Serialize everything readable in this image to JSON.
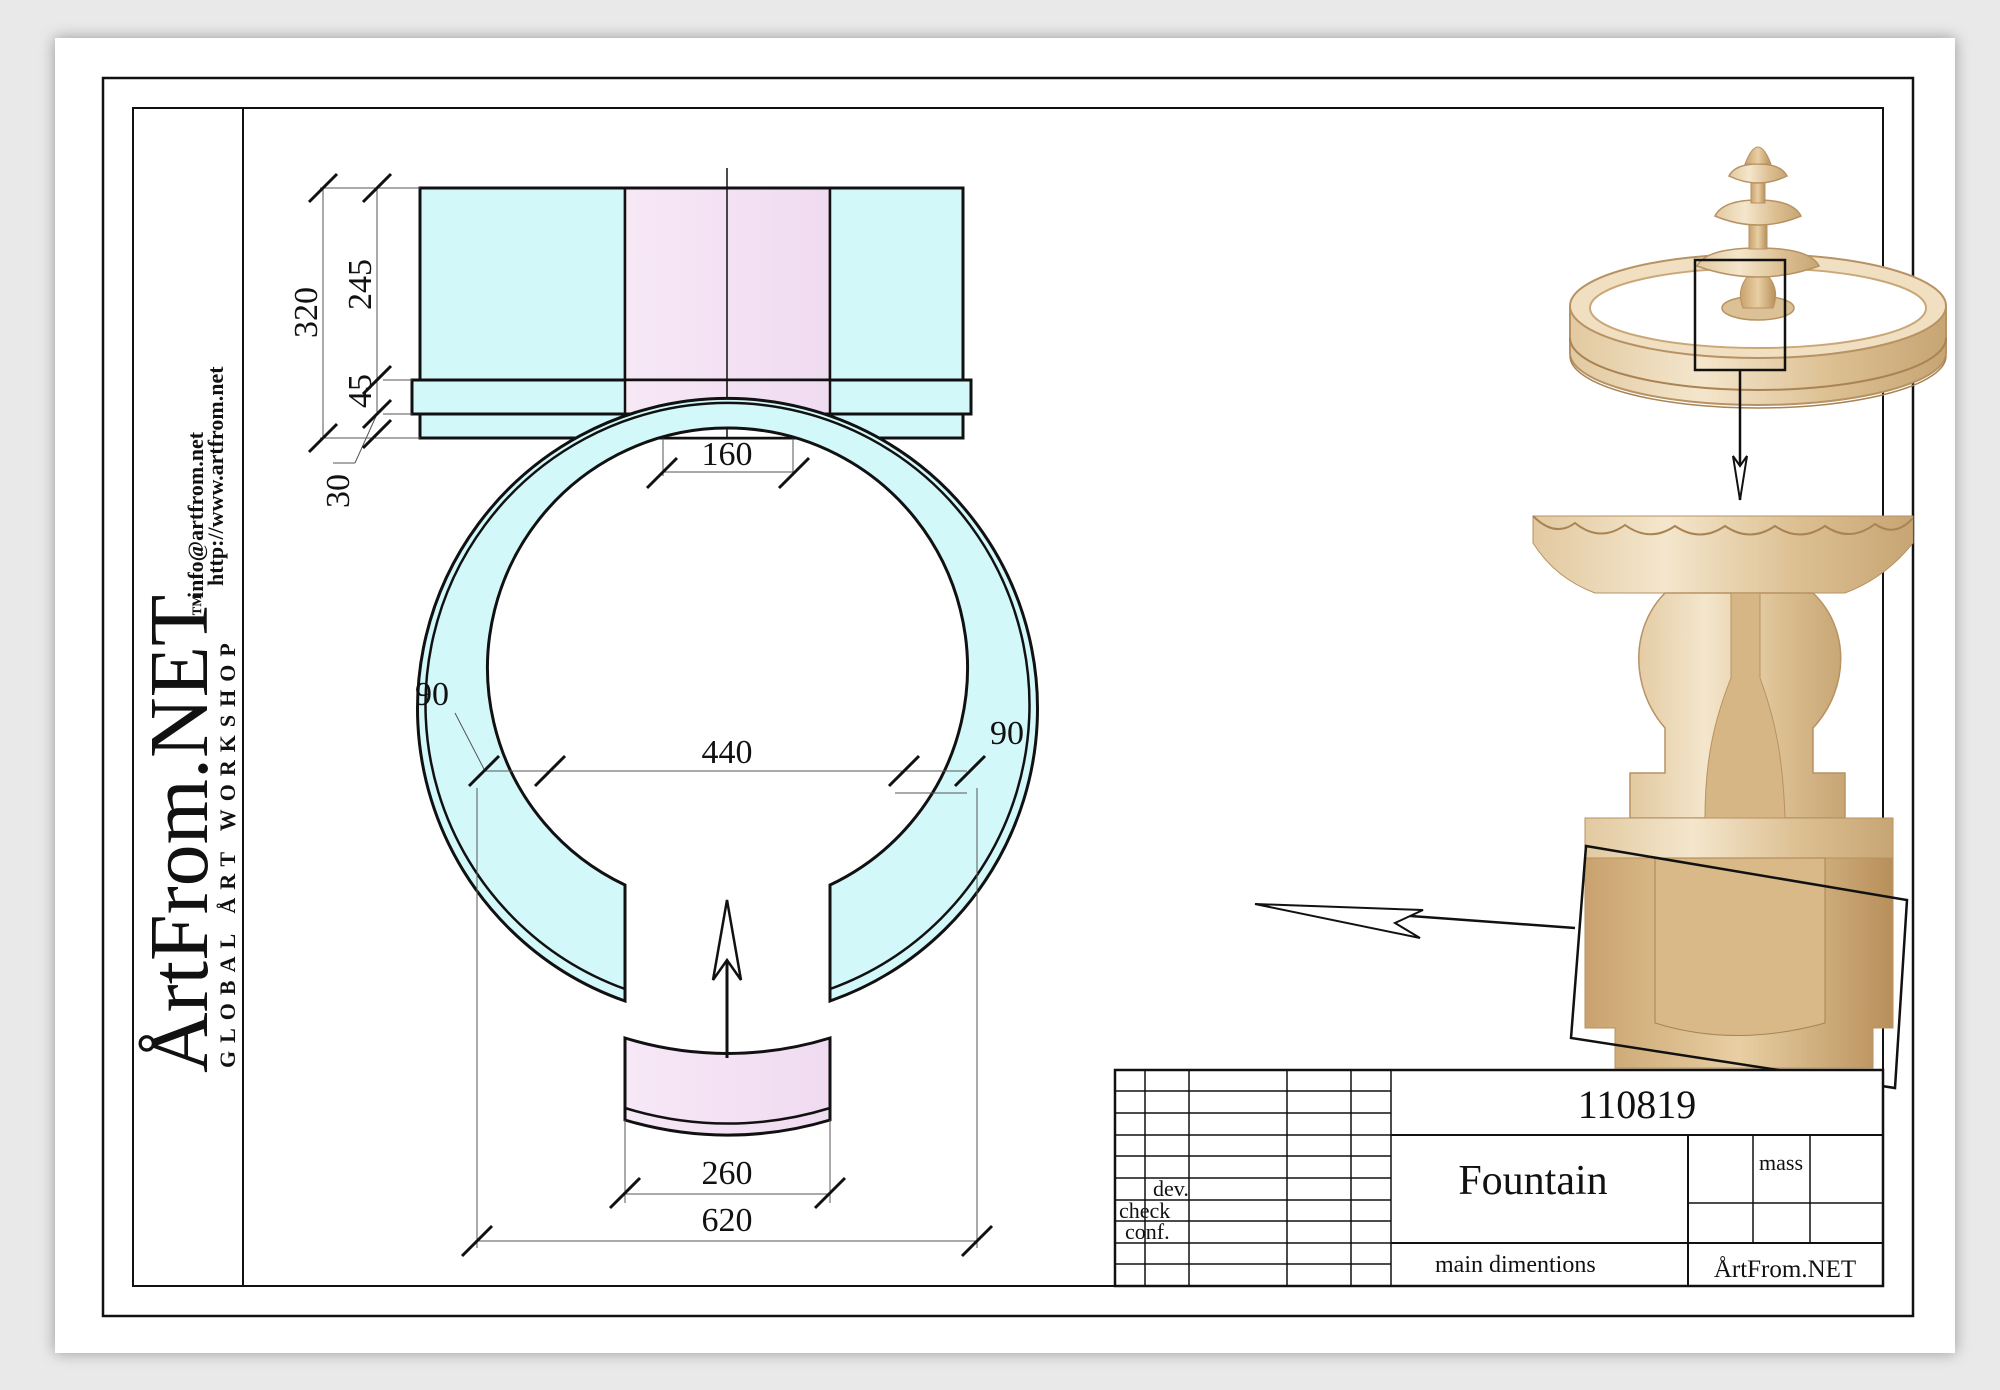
{
  "brand": {
    "name": "ÅrtFrom.NET",
    "trademark": "™",
    "tagline": "GLOBAL ÅRT WORKSHOP",
    "email": "info@artfrom.net",
    "website": "http://www.artfrom.net"
  },
  "dimensions": {
    "total_height": "320",
    "upper_height": "245",
    "rim_height": "45",
    "base_height": "30",
    "inlet_width": "160",
    "wall_left": "90",
    "wall_right": "90",
    "inner_diameter": "440",
    "inlet_arc_width": "260",
    "outer_diameter": "620"
  },
  "title_block": {
    "drawing_number": "110819",
    "title": "Fountain",
    "subtitle": "main dimentions",
    "mass_label": "mass",
    "company": "ÅrtFrom.NET",
    "roles": [
      "dev.",
      "check",
      "conf."
    ]
  },
  "colors": {
    "cyan_fill": "#d3f8fa",
    "pink_fill": "#f3def3",
    "stone_light": "#f1dfc2",
    "stone_dark": "#c9a776"
  }
}
